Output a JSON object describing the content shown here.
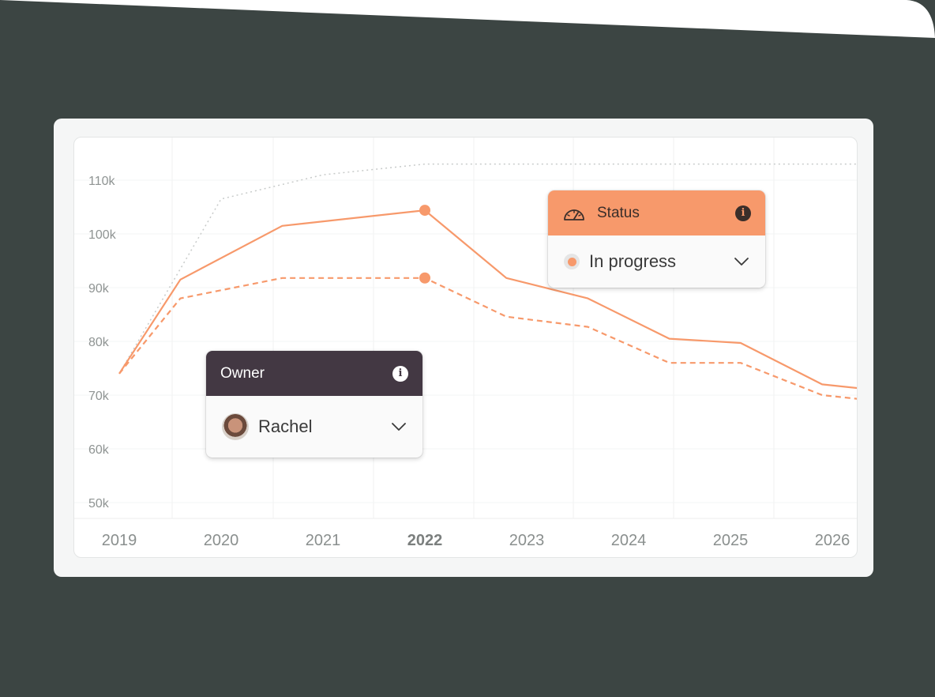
{
  "colors": {
    "background": "#3c4543",
    "accent": "#f7996b",
    "owner_header": "#433843",
    "dotted_line": "#c8cbca"
  },
  "owner_popup": {
    "title": "Owner",
    "info_icon": "info-icon",
    "value": "Rachel",
    "avatar": "avatar"
  },
  "status_popup": {
    "title": "Status",
    "icon": "gauge-icon",
    "info_icon": "info-icon",
    "value": "In progress"
  },
  "chart_data": {
    "type": "line",
    "x": [
      "2019",
      "2020",
      "2021",
      "2022",
      "2023",
      "2024",
      "2025",
      "2026"
    ],
    "highlighted_x": "2022",
    "y_ticks": [
      "110k",
      "100k",
      "90k",
      "80k",
      "70k",
      "60k",
      "50k"
    ],
    "ylim": [
      50000,
      110000
    ],
    "grid": true,
    "series": [
      {
        "style": "dotted",
        "color": "#c8cbca",
        "points": [
          [
            2019.0,
            74000
          ],
          [
            2020.0,
            106500
          ],
          [
            2021.0,
            111000
          ],
          [
            2022.0,
            113000
          ],
          [
            2023.0,
            113000
          ],
          [
            2024.0,
            113000
          ],
          [
            2025.0,
            113000
          ],
          [
            2026.3,
            113000
          ]
        ]
      },
      {
        "style": "solid",
        "color": "#f7996b",
        "points": [
          [
            2019.0,
            74000
          ],
          [
            2019.6,
            91500
          ],
          [
            2020.6,
            101500
          ],
          [
            2022.0,
            104400
          ],
          [
            2022.8,
            91800
          ],
          [
            2023.6,
            88000
          ],
          [
            2024.4,
            80500
          ],
          [
            2025.1,
            79700
          ],
          [
            2025.9,
            72000
          ],
          [
            2026.3,
            71200
          ]
        ],
        "marker_at": 2022.0
      },
      {
        "style": "dashed",
        "color": "#f7996b",
        "points": [
          [
            2019.0,
            74000
          ],
          [
            2019.6,
            88000
          ],
          [
            2020.6,
            91800
          ],
          [
            2022.0,
            91800
          ],
          [
            2022.8,
            84600
          ],
          [
            2023.6,
            82700
          ],
          [
            2024.4,
            76000
          ],
          [
            2025.1,
            76000
          ],
          [
            2025.9,
            70000
          ],
          [
            2026.3,
            69200
          ]
        ],
        "marker_at": 2022.0
      }
    ]
  }
}
